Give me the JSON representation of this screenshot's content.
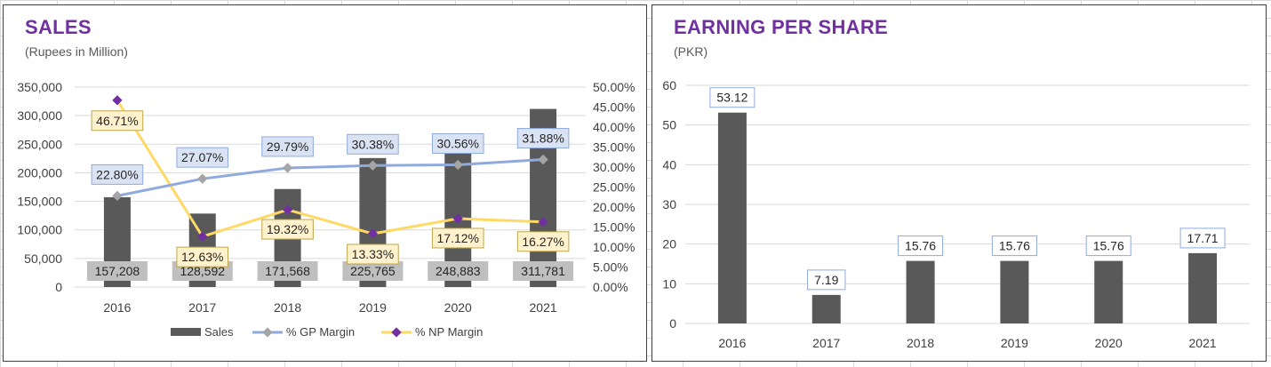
{
  "colors": {
    "title": "#7030a0",
    "bar": "#595959",
    "gp_line": "#8faadc",
    "gp_marker": "#a5a5a5",
    "np_line": "#ffd966",
    "np_marker": "#7030a0",
    "gp_label_bg": "#dae3f3",
    "np_label_bg": "#fff2cc",
    "bar_label_bg": "#bfbfbf"
  },
  "sales_panel": {
    "title": "SALES",
    "subtitle": "(Rupees in Million)"
  },
  "eps_panel": {
    "title": "EARNING PER SHARE",
    "subtitle": "(PKR)"
  },
  "chart_data": [
    {
      "type": "bar",
      "categories": [
        "2016",
        "2017",
        "2018",
        "2019",
        "2020",
        "2021"
      ],
      "series": [
        {
          "name": "Sales",
          "type": "bar",
          "axis": "left",
          "values": [
            157208,
            128592,
            171568,
            225765,
            248883,
            311781
          ],
          "labels": [
            "157,208",
            "128,592",
            "171,568",
            "225,765",
            "248,883",
            "311,781"
          ]
        },
        {
          "name": "% GP Margin",
          "type": "line",
          "axis": "right",
          "values": [
            22.8,
            27.07,
            29.79,
            30.38,
            30.56,
            31.88
          ],
          "labels": [
            "22.80%",
            "27.07%",
            "29.79%",
            "30.38%",
            "30.56%",
            "31.88%"
          ]
        },
        {
          "name": "% NP Margin",
          "type": "line",
          "axis": "right",
          "values": [
            46.71,
            12.63,
            19.32,
            13.33,
            17.12,
            16.27
          ],
          "labels": [
            "46.71%",
            "12.63%",
            "19.32%",
            "13.33%",
            "17.12%",
            "16.27%"
          ]
        }
      ],
      "title": "SALES",
      "subtitle": "(Rupees in Million)",
      "ylim": [
        0,
        350000
      ],
      "yticks": [
        "0",
        "50,000",
        "100,000",
        "150,000",
        "200,000",
        "250,000",
        "300,000",
        "350,000"
      ],
      "y2lim": [
        0,
        50
      ],
      "y2ticks": [
        "0.00%",
        "5.00%",
        "10.00%",
        "15.00%",
        "20.00%",
        "25.00%",
        "30.00%",
        "35.00%",
        "40.00%",
        "45.00%",
        "50.00%"
      ],
      "grid": true,
      "legend": "bottom"
    },
    {
      "type": "bar",
      "categories": [
        "2016",
        "2017",
        "2018",
        "2019",
        "2020",
        "2021"
      ],
      "values": [
        53.12,
        7.19,
        15.76,
        15.76,
        15.76,
        17.71
      ],
      "labels": [
        "53.12",
        "7.19",
        "15.76",
        "15.76",
        "15.76",
        "17.71"
      ],
      "title": "EARNING PER SHARE",
      "subtitle": "(PKR)",
      "ylim": [
        0,
        60
      ],
      "yticks": [
        "0",
        "10",
        "20",
        "30",
        "40",
        "50",
        "60"
      ],
      "grid": true
    }
  ]
}
